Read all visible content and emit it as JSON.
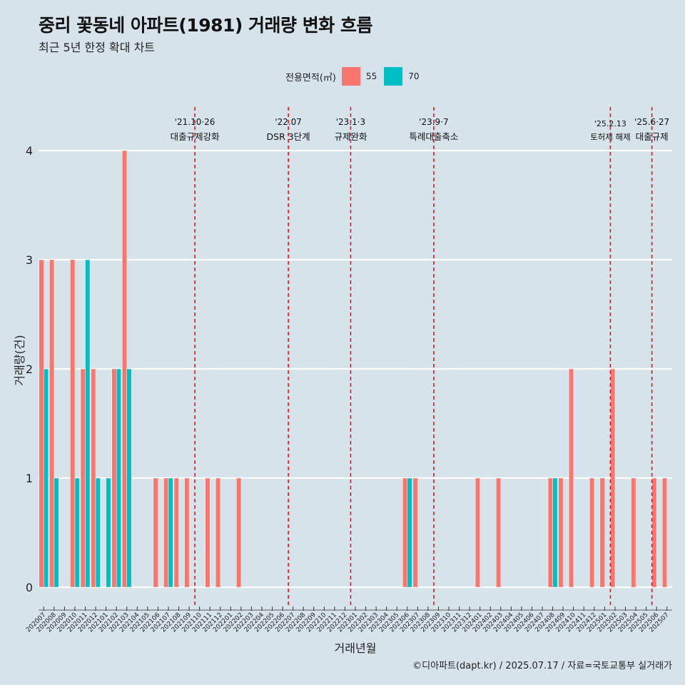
{
  "header": {
    "title": "중리 꽃동네 아파트(1981) 거래량 변화 흐름",
    "subtitle": "최근 5년 한정 확대 차트"
  },
  "legend": {
    "title": "전용면적(㎡)",
    "items": [
      {
        "label": "55",
        "color": "#f8766d"
      },
      {
        "label": "70",
        "color": "#00bfc4"
      }
    ]
  },
  "caption": "©디아파트(dapt.kr) / 2025.07.17 / 자료=국토교통부 실거래가",
  "chart_data": {
    "type": "bar",
    "xlabel": "거래년월",
    "ylabel": "거래량(건)",
    "ylim": [
      0,
      4
    ],
    "yticks": [
      0,
      1,
      2,
      3,
      4
    ],
    "grid": "horizontal major lines only",
    "legend_position": "top",
    "categories": [
      "202007",
      "202008",
      "202009",
      "202010",
      "202011",
      "202012",
      "202101",
      "202102",
      "202103",
      "202104",
      "202105",
      "202106",
      "202107",
      "202108",
      "202109",
      "202110",
      "202111",
      "202112",
      "202201",
      "202202",
      "202203",
      "202204",
      "202205",
      "202206",
      "202207",
      "202208",
      "202209",
      "202210",
      "202211",
      "202212",
      "202301",
      "202302",
      "202303",
      "202304",
      "202305",
      "202306",
      "202307",
      "202308",
      "202309",
      "202310",
      "202311",
      "202312",
      "202401",
      "202402",
      "202403",
      "202404",
      "202405",
      "202406",
      "202407",
      "202408",
      "202409",
      "202410",
      "202411",
      "202412",
      "202501",
      "202502",
      "202503",
      "202504",
      "202505",
      "202506",
      "202507"
    ],
    "series": [
      {
        "name": "55",
        "color": "#f8766d",
        "values": [
          3,
          3,
          0,
          3,
          2,
          2,
          0,
          2,
          4,
          0,
          0,
          1,
          1,
          1,
          1,
          0,
          1,
          1,
          0,
          1,
          0,
          0,
          0,
          0,
          0,
          0,
          0,
          0,
          0,
          0,
          0,
          0,
          0,
          0,
          0,
          1,
          1,
          0,
          0,
          0,
          0,
          0,
          1,
          0,
          1,
          0,
          0,
          0,
          0,
          1,
          1,
          2,
          0,
          1,
          1,
          2,
          0,
          1,
          0,
          1,
          1
        ]
      },
      {
        "name": "70",
        "color": "#00bfc4",
        "values": [
          2,
          1,
          0,
          1,
          3,
          1,
          1,
          2,
          2,
          0,
          0,
          0,
          1,
          0,
          0,
          0,
          0,
          0,
          0,
          0,
          0,
          0,
          0,
          0,
          0,
          0,
          0,
          0,
          0,
          0,
          0,
          0,
          0,
          0,
          0,
          1,
          0,
          0,
          0,
          0,
          0,
          0,
          0,
          0,
          0,
          0,
          0,
          0,
          0,
          1,
          0,
          0,
          0,
          0,
          0,
          0,
          0,
          0,
          0,
          0,
          0
        ]
      }
    ],
    "annotations": [
      {
        "x": "202110",
        "date": "'21.10·26",
        "text": "대출규제강화"
      },
      {
        "x": "202207",
        "date": "'22.07",
        "text": "DSR 3단계"
      },
      {
        "x": "202301",
        "date": "'23.1·3",
        "text": "규제완화"
      },
      {
        "x": "202309",
        "date": "'23.9·7",
        "text": "특례대출축소"
      },
      {
        "x": "202502",
        "date": "'25.2.13",
        "text": "토허제 해제"
      },
      {
        "x": "202506",
        "date": "'25.6·27",
        "text": "대출규제"
      }
    ]
  }
}
